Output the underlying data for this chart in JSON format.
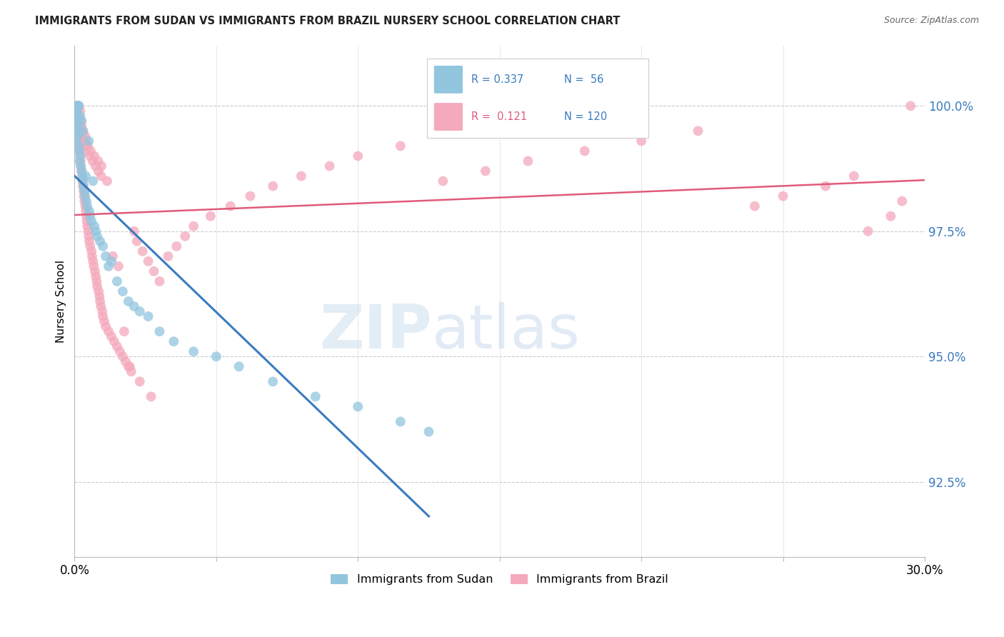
{
  "title": "IMMIGRANTS FROM SUDAN VS IMMIGRANTS FROM BRAZIL NURSERY SCHOOL CORRELATION CHART",
  "source": "Source: ZipAtlas.com",
  "ylabel": "Nursery School",
  "ytick_values": [
    92.5,
    95.0,
    97.5,
    100.0
  ],
  "xlim": [
    0.0,
    30.0
  ],
  "ylim": [
    91.0,
    101.2
  ],
  "legend_blue_label": "Immigrants from Sudan",
  "legend_pink_label": "Immigrants from Brazil",
  "R_blue": 0.337,
  "N_blue": 56,
  "R_pink": 0.121,
  "N_pink": 120,
  "blue_color": "#92c5de",
  "pink_color": "#f4a9bc",
  "blue_line_color": "#3a7bbf",
  "pink_line_color": "#e05a7a",
  "watermark_zip": "ZIP",
  "watermark_atlas": "atlas",
  "sudan_x": [
    0.05,
    0.07,
    0.08,
    0.09,
    0.1,
    0.1,
    0.11,
    0.12,
    0.13,
    0.15,
    0.15,
    0.17,
    0.18,
    0.2,
    0.2,
    0.22,
    0.25,
    0.25,
    0.28,
    0.3,
    0.3,
    0.32,
    0.35,
    0.38,
    0.4,
    0.42,
    0.45,
    0.5,
    0.52,
    0.55,
    0.6,
    0.65,
    0.7,
    0.75,
    0.8,
    0.9,
    1.0,
    1.1,
    1.2,
    1.3,
    1.5,
    1.7,
    1.9,
    2.1,
    2.3,
    2.6,
    3.0,
    3.5,
    4.2,
    5.0,
    5.8,
    7.0,
    8.5,
    10.0,
    11.5,
    12.5
  ],
  "sudan_y": [
    99.3,
    99.8,
    99.9,
    100.0,
    100.0,
    99.6,
    99.7,
    99.5,
    99.4,
    100.0,
    99.2,
    99.1,
    98.9,
    99.8,
    99.0,
    98.8,
    99.7,
    98.7,
    98.6,
    99.5,
    98.5,
    98.4,
    98.3,
    98.2,
    98.6,
    98.1,
    98.0,
    99.3,
    97.9,
    97.8,
    97.7,
    98.5,
    97.6,
    97.5,
    97.4,
    97.3,
    97.2,
    97.0,
    96.8,
    96.9,
    96.5,
    96.3,
    96.1,
    96.0,
    95.9,
    95.8,
    95.5,
    95.3,
    95.1,
    95.0,
    94.8,
    94.5,
    94.2,
    94.0,
    93.7,
    93.5
  ],
  "brazil_x": [
    0.05,
    0.07,
    0.08,
    0.1,
    0.1,
    0.11,
    0.12,
    0.13,
    0.15,
    0.15,
    0.16,
    0.17,
    0.18,
    0.2,
    0.2,
    0.21,
    0.22,
    0.23,
    0.25,
    0.25,
    0.27,
    0.28,
    0.3,
    0.3,
    0.32,
    0.33,
    0.35,
    0.37,
    0.38,
    0.4,
    0.4,
    0.42,
    0.43,
    0.45,
    0.47,
    0.48,
    0.5,
    0.52,
    0.55,
    0.57,
    0.6,
    0.62,
    0.65,
    0.68,
    0.7,
    0.72,
    0.75,
    0.78,
    0.8,
    0.83,
    0.85,
    0.88,
    0.9,
    0.93,
    0.95,
    0.98,
    1.0,
    1.05,
    1.1,
    1.2,
    1.3,
    1.4,
    1.5,
    1.6,
    1.7,
    1.8,
    1.9,
    2.0,
    2.1,
    2.2,
    2.4,
    2.6,
    2.8,
    3.0,
    3.3,
    3.6,
    3.9,
    4.2,
    4.8,
    5.5,
    6.2,
    7.0,
    8.0,
    9.0,
    10.0,
    11.5,
    13.0,
    14.5,
    16.0,
    18.0,
    20.0,
    22.0,
    24.0,
    25.0,
    26.5,
    27.5,
    28.0,
    28.8,
    29.2,
    29.5,
    0.09,
    0.14,
    0.19,
    0.24,
    0.29,
    0.34,
    0.39,
    0.44,
    0.54,
    0.64,
    0.74,
    0.84,
    0.94,
    1.15,
    1.35,
    1.55,
    1.75,
    1.95,
    2.3,
    2.7
  ],
  "brazil_y": [
    99.5,
    99.8,
    100.0,
    100.0,
    99.9,
    99.7,
    99.6,
    99.8,
    100.0,
    99.4,
    99.3,
    99.2,
    99.1,
    99.9,
    99.0,
    98.9,
    98.8,
    99.7,
    99.6,
    98.7,
    98.6,
    98.5,
    99.5,
    98.4,
    98.3,
    98.2,
    98.1,
    99.4,
    98.0,
    97.9,
    99.3,
    97.8,
    97.7,
    97.6,
    99.2,
    97.5,
    97.4,
    97.3,
    97.2,
    99.1,
    97.1,
    97.0,
    96.9,
    96.8,
    99.0,
    96.7,
    96.6,
    96.5,
    96.4,
    98.9,
    96.3,
    96.2,
    96.1,
    96.0,
    98.8,
    95.9,
    95.8,
    95.7,
    95.6,
    95.5,
    95.4,
    95.3,
    95.2,
    95.1,
    95.0,
    94.9,
    94.8,
    94.7,
    97.5,
    97.3,
    97.1,
    96.9,
    96.7,
    96.5,
    97.0,
    97.2,
    97.4,
    97.6,
    97.8,
    98.0,
    98.2,
    98.4,
    98.6,
    98.8,
    99.0,
    99.2,
    98.5,
    98.7,
    98.9,
    99.1,
    99.3,
    99.5,
    98.0,
    98.2,
    98.4,
    98.6,
    97.5,
    97.8,
    98.1,
    100.0,
    99.8,
    99.7,
    99.6,
    99.5,
    99.4,
    99.3,
    99.2,
    99.1,
    99.0,
    98.9,
    98.8,
    98.7,
    98.6,
    98.5,
    97.0,
    96.8,
    95.5,
    94.8,
    94.5,
    94.2
  ]
}
